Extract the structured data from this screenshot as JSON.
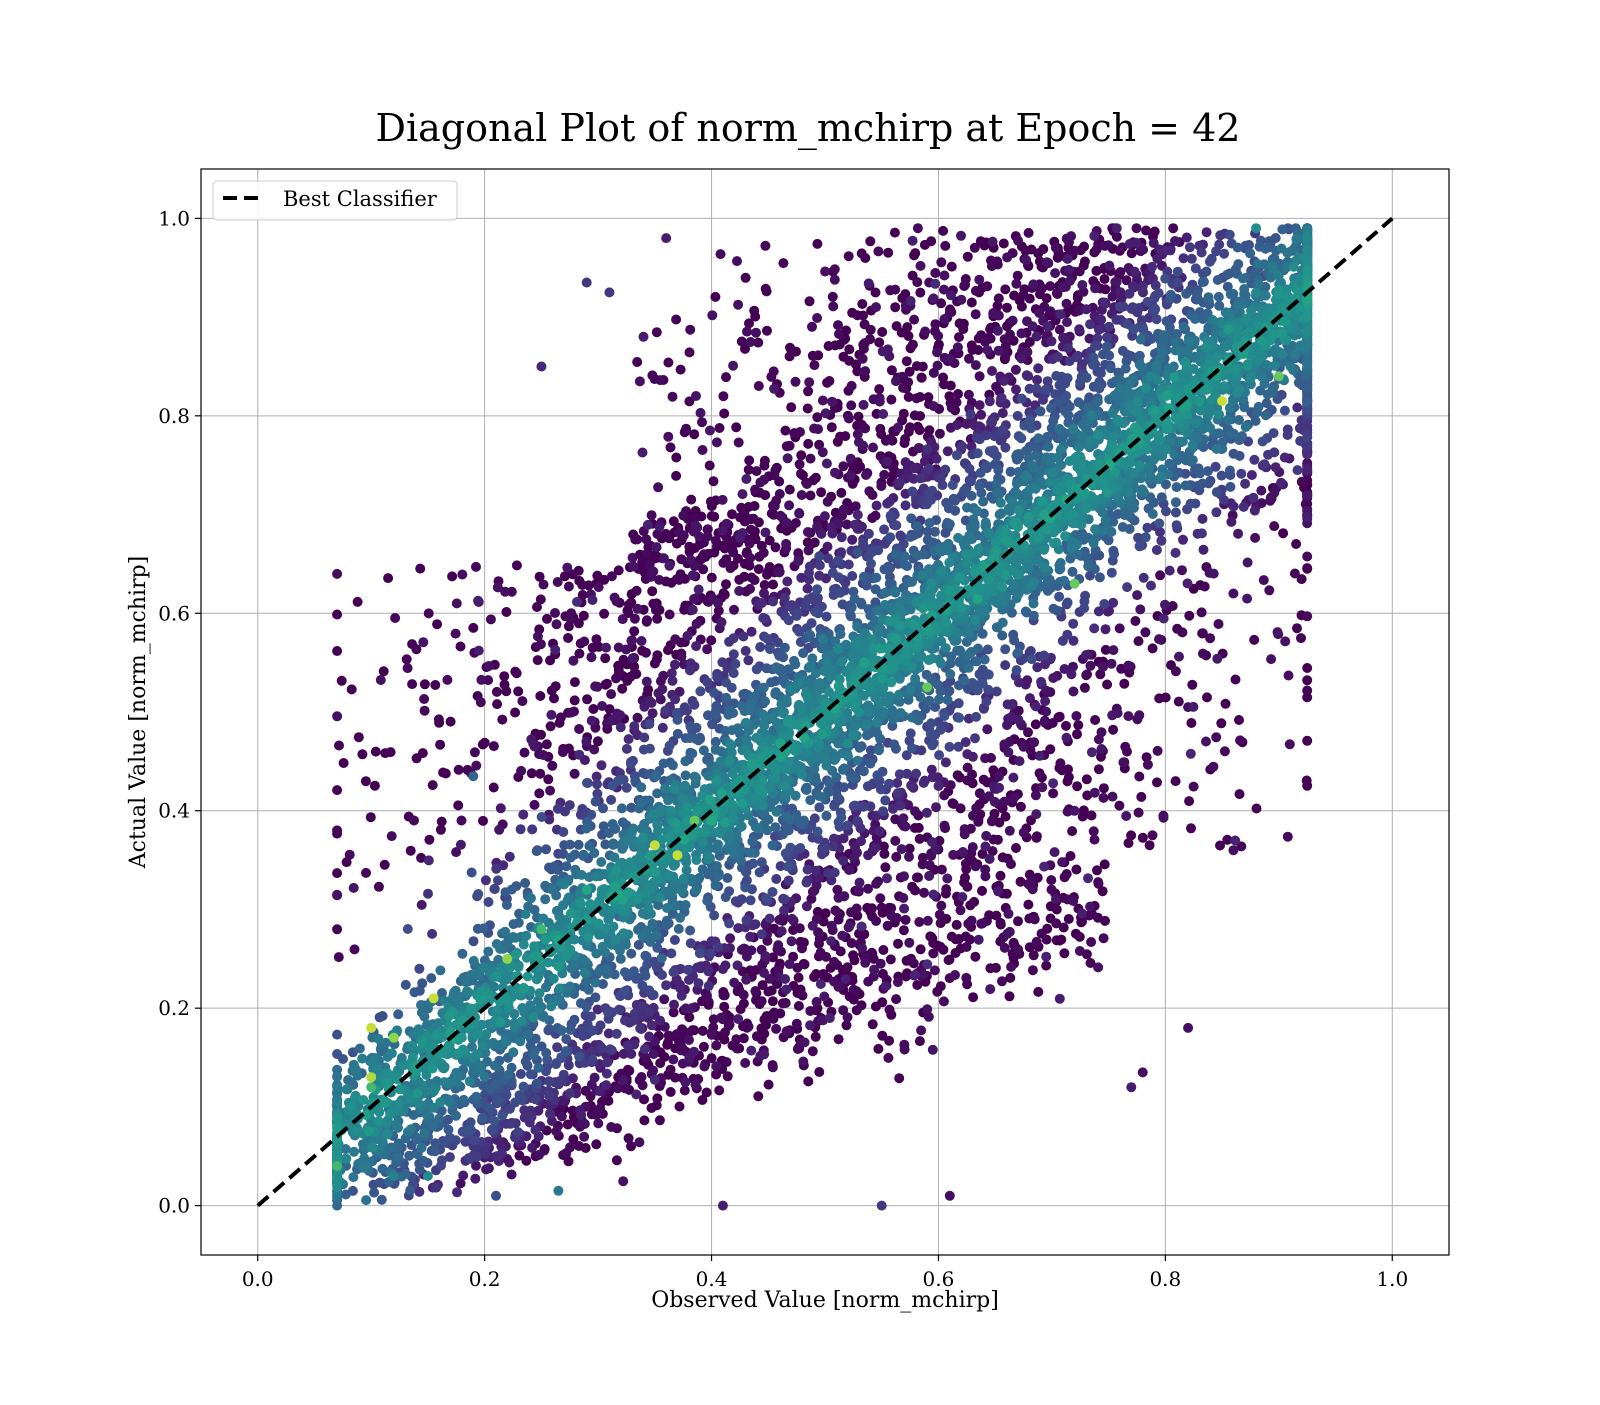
{
  "chart_data": {
    "type": "scatter",
    "title": "Diagonal Plot of norm_mchirp at Epoch = 42",
    "xlabel": "Observed Value [norm_mchirp]",
    "ylabel": "Actual Value [norm_mchirp]",
    "xlim": [
      -0.05,
      1.05
    ],
    "ylim": [
      -0.05,
      1.05
    ],
    "xticks": [
      0.0,
      0.2,
      0.4,
      0.6,
      0.8,
      1.0
    ],
    "yticks": [
      0.0,
      0.2,
      0.4,
      0.6,
      0.8,
      1.0
    ],
    "xtick_labels": [
      "0.0",
      "0.2",
      "0.4",
      "0.6",
      "0.8",
      "1.0"
    ],
    "ytick_labels": [
      "0.0",
      "0.2",
      "0.4",
      "0.6",
      "0.8",
      "1.0"
    ],
    "grid": true,
    "colormap": "viridis",
    "legend": {
      "placement": "top-left",
      "entries": [
        {
          "label": "Best Classifier",
          "style": "dashed",
          "color": "#000000"
        }
      ]
    },
    "reference_line": {
      "x": [
        0.0,
        1.0
      ],
      "y": [
        0.0,
        1.0
      ],
      "color": "#000000",
      "style": "dashed"
    },
    "series": [
      {
        "type": "scatter",
        "colormap": "viridis",
        "points": [
          [
            0.1,
            0.18,
            0.95
          ],
          [
            0.1,
            0.13,
            0.93
          ],
          [
            0.12,
            0.17,
            0.9
          ],
          [
            0.155,
            0.21,
            0.95
          ],
          [
            0.07,
            0.04,
            0.8
          ],
          [
            0.15,
            0.03,
            0.6
          ],
          [
            0.12,
            0.03,
            0.55
          ],
          [
            0.1,
            0.12,
            0.8
          ],
          [
            0.085,
            0.09,
            0.6
          ],
          [
            0.22,
            0.25,
            0.9
          ],
          [
            0.25,
            0.28,
            0.8
          ],
          [
            0.29,
            0.32,
            0.75
          ],
          [
            0.35,
            0.365,
            0.95
          ],
          [
            0.37,
            0.355,
            0.95
          ],
          [
            0.385,
            0.39,
            0.85
          ],
          [
            0.4,
            0.39,
            0.75
          ],
          [
            0.59,
            0.525,
            0.85
          ],
          [
            0.72,
            0.63,
            0.85
          ],
          [
            0.85,
            0.815,
            0.95
          ],
          [
            0.9,
            0.84,
            0.85
          ],
          [
            0.88,
            0.99,
            0.6
          ],
          [
            0.92,
            0.96,
            0.45
          ],
          [
            0.86,
            0.62,
            0.05
          ],
          [
            0.86,
            0.36,
            0.05
          ],
          [
            0.82,
            0.18,
            0.05
          ],
          [
            0.82,
            0.505,
            0.05
          ],
          [
            0.19,
            0.435,
            0.4
          ],
          [
            0.21,
            0.01,
            0.3
          ],
          [
            0.265,
            0.015,
            0.5
          ],
          [
            0.36,
            0.98,
            0.1
          ],
          [
            0.29,
            0.935,
            0.2
          ],
          [
            0.31,
            0.925,
            0.2
          ],
          [
            0.34,
            0.88,
            0.1
          ],
          [
            0.25,
            0.85,
            0.15
          ],
          [
            0.41,
            0.0,
            0.1
          ],
          [
            0.55,
            0.0,
            0.2
          ],
          [
            0.61,
            0.01,
            0.05
          ],
          [
            0.77,
            0.12,
            0.1
          ],
          [
            0.78,
            0.135,
            0.05
          ]
        ]
      }
    ],
    "point_count_approx": 15000
  }
}
